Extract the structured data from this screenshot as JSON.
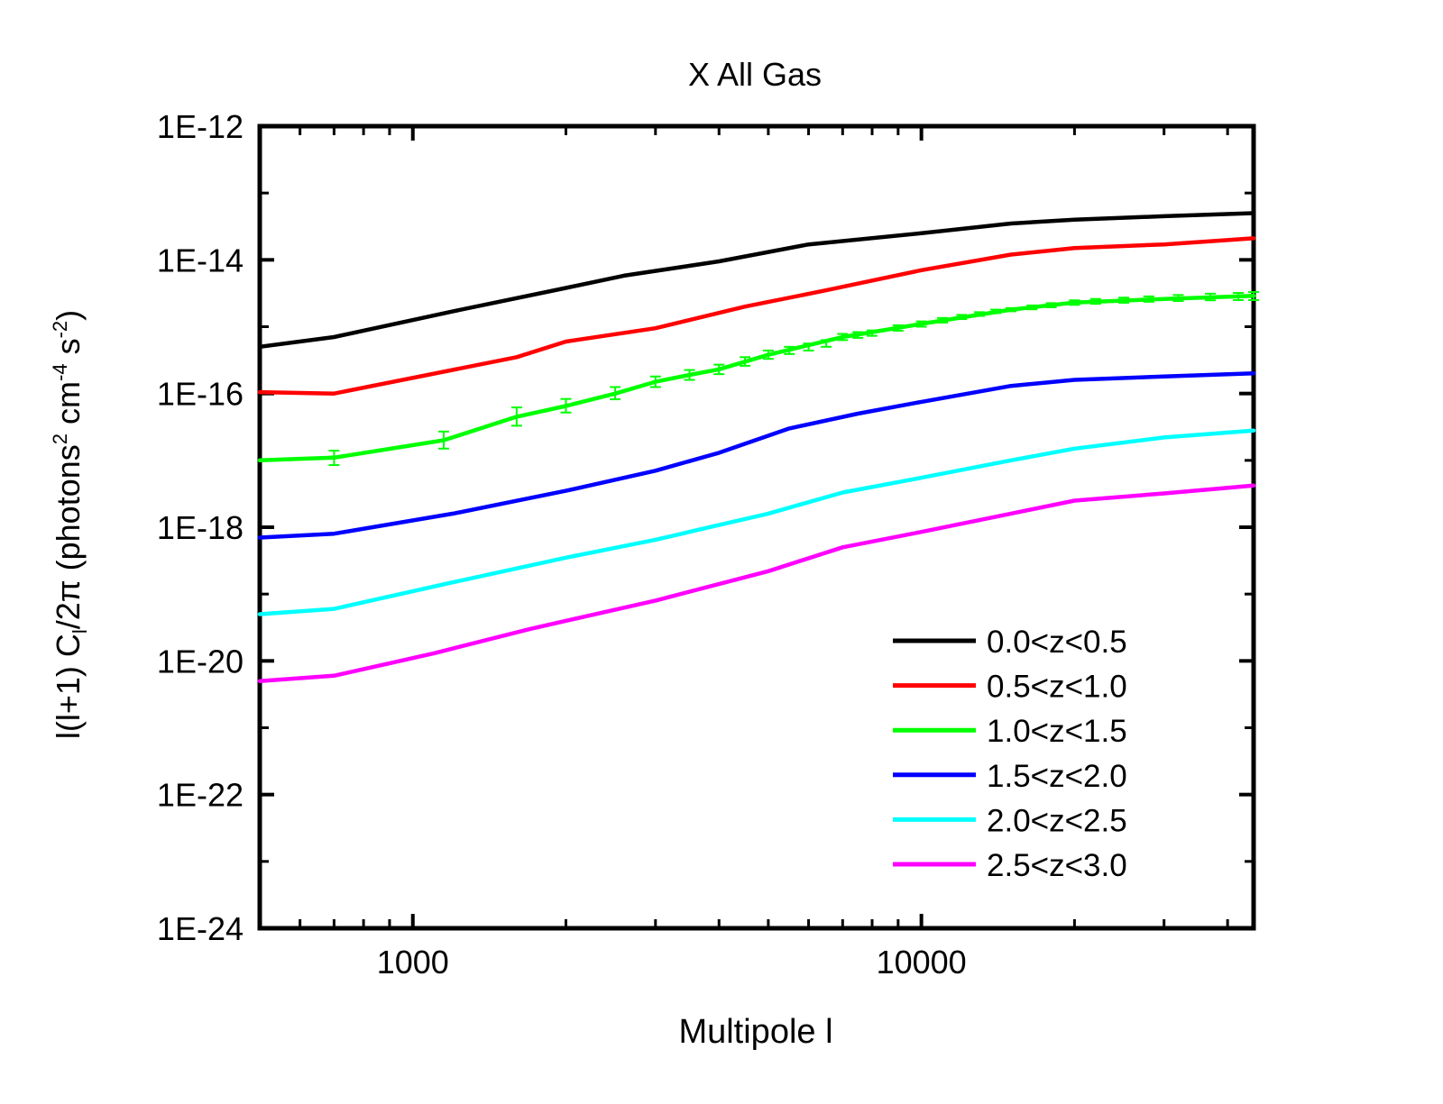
{
  "chart_data": {
    "type": "line",
    "title": "X All Gas",
    "xlabel": "Multipole l",
    "ylabel": "l(l+1) C_l/2π (photons² cm⁻⁴ s⁻²)",
    "ylabel_parts": {
      "prefix": "l(l+1) C",
      "sub": "l",
      "mid": "/2π (photons",
      "sup1": "2",
      "mid2": " cm",
      "sup2": "-4",
      "mid3": " s",
      "sup3": "-2",
      "suffix": ")"
    },
    "x_scale": "log",
    "y_scale": "log",
    "xlim": [
      500,
      45000
    ],
    "ylim": [
      1e-24,
      1e-12
    ],
    "x_ticks": [
      {
        "value": 1000,
        "label": "1000"
      },
      {
        "value": 10000,
        "label": "10000"
      }
    ],
    "y_ticks": [
      {
        "value": 1e-12,
        "label": "1E-12"
      },
      {
        "value": 1e-14,
        "label": "1E-14"
      },
      {
        "value": 1e-16,
        "label": "1E-16"
      },
      {
        "value": 1e-18,
        "label": "1E-18"
      },
      {
        "value": 1e-20,
        "label": "1E-20"
      },
      {
        "value": 1e-22,
        "label": "1E-22"
      },
      {
        "value": 1e-24,
        "label": "1E-24"
      }
    ],
    "legend_position": "bottom-right",
    "series": [
      {
        "name": "0.0<z<0.5",
        "color": "#000000",
        "x": [
          500,
          700,
          1200,
          2000,
          2600,
          4000,
          6000,
          10000,
          15000,
          20000,
          30000,
          45000
        ],
        "y": [
          5e-16,
          7e-16,
          1.7e-15,
          3.8e-15,
          5.8e-15,
          9.5e-15,
          1.7e-14,
          2.5e-14,
          3.5e-14,
          4e-14,
          4.5e-14,
          5e-14
        ]
      },
      {
        "name": "0.5<z<1.0",
        "color": "#ff0000",
        "x": [
          500,
          700,
          1600,
          2000,
          3000,
          4500,
          6500,
          10000,
          15000,
          20000,
          30000,
          45000
        ],
        "y": [
          1.05e-16,
          1e-16,
          3.5e-16,
          6e-16,
          9.5e-16,
          2e-15,
          3.5e-15,
          7e-15,
          1.2e-14,
          1.5e-14,
          1.7e-14,
          2.1e-14
        ]
      },
      {
        "name": "1.0<z<1.5",
        "color": "#00ff00",
        "x": [
          500,
          700,
          1150,
          1600,
          2000,
          2500,
          3000,
          3500,
          4000,
          5000,
          7000,
          10000,
          15000,
          20000,
          30000,
          45000
        ],
        "y": [
          1e-17,
          1.1e-17,
          2e-17,
          4.5e-17,
          6.5e-17,
          1e-16,
          1.5e-16,
          1.9e-16,
          2.3e-16,
          3.8e-16,
          7e-16,
          1.1e-15,
          1.8e-15,
          2.3e-15,
          2.6e-15,
          2.9e-15
        ]
      },
      {
        "name": "1.5<z<2.0",
        "color": "#0000ff",
        "x": [
          500,
          700,
          1200,
          2000,
          3000,
          4000,
          5500,
          7500,
          10000,
          15000,
          20000,
          30000,
          45000
        ],
        "y": [
          7e-19,
          8e-19,
          1.6e-18,
          3.5e-18,
          7e-18,
          1.3e-17,
          3e-17,
          5e-17,
          7.5e-17,
          1.3e-16,
          1.6e-16,
          1.8e-16,
          2e-16
        ]
      },
      {
        "name": "2.0<z<2.5",
        "color": "#00ffff",
        "x": [
          500,
          700,
          1200,
          2000,
          3000,
          5000,
          7000,
          10000,
          15000,
          20000,
          30000,
          45000
        ],
        "y": [
          5e-20,
          6e-20,
          1.5e-19,
          3.5e-19,
          6.5e-19,
          1.6e-18,
          3.3e-18,
          5.5e-18,
          1e-17,
          1.5e-17,
          2.2e-17,
          2.8e-17
        ]
      },
      {
        "name": "2.5<z<3.0",
        "color": "#ff00ff",
        "x": [
          500,
          700,
          1100,
          1700,
          3000,
          5000,
          7000,
          10000,
          15000,
          20000,
          30000,
          45000
        ],
        "y": [
          5e-21,
          6e-21,
          1.3e-20,
          3e-20,
          8e-20,
          2.2e-19,
          5e-19,
          8.5e-19,
          1.6e-18,
          2.5e-18,
          3.2e-18,
          4.2e-18
        ]
      }
    ],
    "error_bars_series": "1.0<z<1.5",
    "error_bars": [
      {
        "x": 700,
        "y": 1.1e-17,
        "lo": 8.5e-18,
        "hi": 1.4e-17
      },
      {
        "x": 1150,
        "y": 2e-17,
        "lo": 1.5e-17,
        "hi": 2.7e-17
      },
      {
        "x": 1600,
        "y": 4.5e-17,
        "lo": 3.3e-17,
        "hi": 6.2e-17
      },
      {
        "x": 2000,
        "y": 6.5e-17,
        "lo": 5.2e-17,
        "hi": 8.3e-17
      },
      {
        "x": 2500,
        "y": 1e-16,
        "lo": 8.2e-17,
        "hi": 1.25e-16
      },
      {
        "x": 3000,
        "y": 1.5e-16,
        "lo": 1.25e-16,
        "hi": 1.8e-16
      },
      {
        "x": 3500,
        "y": 1.9e-16,
        "lo": 1.6e-16,
        "hi": 2.25e-16
      },
      {
        "x": 4000,
        "y": 2.3e-16,
        "lo": 1.95e-16,
        "hi": 2.7e-16
      },
      {
        "x": 4500,
        "y": 3e-16,
        "lo": 2.6e-16,
        "hi": 3.5e-16
      },
      {
        "x": 5000,
        "y": 3.8e-16,
        "lo": 3.3e-16,
        "hi": 4.4e-16
      },
      {
        "x": 5500,
        "y": 4.4e-16,
        "lo": 3.9e-16,
        "hi": 5e-16
      },
      {
        "x": 6000,
        "y": 5e-16,
        "lo": 4.4e-16,
        "hi": 5.6e-16
      },
      {
        "x": 6500,
        "y": 5.6e-16,
        "lo": 5e-16,
        "hi": 6.3e-16
      },
      {
        "x": 7000,
        "y": 7e-16,
        "lo": 6.3e-16,
        "hi": 7.8e-16
      },
      {
        "x": 7500,
        "y": 7.5e-16,
        "lo": 6.8e-16,
        "hi": 8.3e-16
      },
      {
        "x": 8000,
        "y": 8e-16,
        "lo": 7.3e-16,
        "hi": 8.8e-16
      },
      {
        "x": 9000,
        "y": 9.5e-16,
        "lo": 8.7e-16,
        "hi": 1.05e-15
      },
      {
        "x": 10000,
        "y": 1.1e-15,
        "lo": 1e-15,
        "hi": 1.2e-15
      },
      {
        "x": 11000,
        "y": 1.25e-15,
        "lo": 1.15e-15,
        "hi": 1.35e-15
      },
      {
        "x": 12000,
        "y": 1.4e-15,
        "lo": 1.3e-15,
        "hi": 1.5e-15
      },
      {
        "x": 13000,
        "y": 1.55e-15,
        "lo": 1.45e-15,
        "hi": 1.65e-15
      },
      {
        "x": 14000,
        "y": 1.7e-15,
        "lo": 1.6e-15,
        "hi": 1.8e-15
      },
      {
        "x": 15000,
        "y": 1.8e-15,
        "lo": 1.7e-15,
        "hi": 1.9e-15
      },
      {
        "x": 16500,
        "y": 1.95e-15,
        "lo": 1.82e-15,
        "hi": 2.08e-15
      },
      {
        "x": 18000,
        "y": 2.1e-15,
        "lo": 1.95e-15,
        "hi": 2.25e-15
      },
      {
        "x": 20000,
        "y": 2.3e-15,
        "lo": 2.12e-15,
        "hi": 2.48e-15
      },
      {
        "x": 22000,
        "y": 2.4e-15,
        "lo": 2.2e-15,
        "hi": 2.6e-15
      },
      {
        "x": 25000,
        "y": 2.5e-15,
        "lo": 2.28e-15,
        "hi": 2.72e-15
      },
      {
        "x": 28000,
        "y": 2.6e-15,
        "lo": 2.36e-15,
        "hi": 2.84e-15
      },
      {
        "x": 32000,
        "y": 2.7e-15,
        "lo": 2.42e-15,
        "hi": 2.98e-15
      },
      {
        "x": 37000,
        "y": 2.8e-15,
        "lo": 2.48e-15,
        "hi": 3.12e-15
      },
      {
        "x": 42000,
        "y": 2.85e-15,
        "lo": 2.5e-15,
        "hi": 3.2e-15
      },
      {
        "x": 45000,
        "y": 2.9e-15,
        "lo": 2.5e-15,
        "hi": 3.3e-15
      }
    ]
  }
}
